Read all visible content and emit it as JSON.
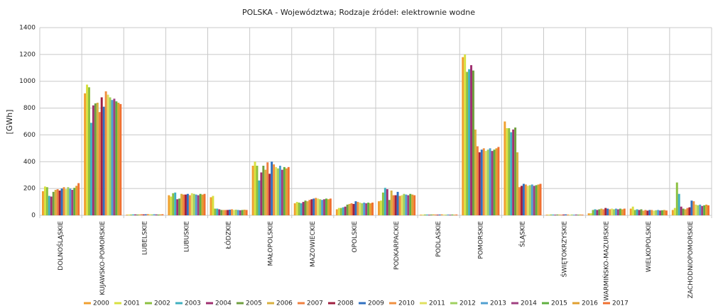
{
  "chart_data": {
    "type": "bar",
    "title": "POLSKA - Województwa; Rodzaje źródeł: elektrownie wodne",
    "y_label": "[GWh]",
    "categories": [
      "DOLNOŚLĄSKIE",
      "KUJAWSKO-POMORSKIE",
      "LUBELSKIE",
      "LUBUSKIE",
      "ŁÓDZKIE",
      "MAŁOPOLSKIE",
      "MAZOWIECKIE",
      "OPOLSKIE",
      "PODKARPACKIE",
      "PODLASKIE",
      "POMORSKIE",
      "ŚLĄSKIE",
      "ŚWIĘTOKRZYSKIE",
      "WARMIŃSKO-MAZURSKIE",
      "WIELKOPOLSKIE",
      "ZACHODNIOPOMORSKIE"
    ],
    "series": [
      {
        "name": "2000",
        "color": "#f0a030",
        "values": [
          180,
          910,
          5,
          150,
          135,
          370,
          90,
          45,
          105,
          5,
          1180,
          700,
          5,
          15,
          50,
          40
        ]
      },
      {
        "name": "2001",
        "color": "#d8e040",
        "values": [
          215,
          975,
          6,
          140,
          145,
          400,
          100,
          55,
          110,
          5,
          1200,
          650,
          5,
          15,
          65,
          55
        ]
      },
      {
        "name": "2002",
        "color": "#8cc040",
        "values": [
          210,
          955,
          6,
          165,
          50,
          370,
          95,
          55,
          170,
          6,
          1070,
          650,
          6,
          40,
          40,
          245
        ]
      },
      {
        "name": "2003",
        "color": "#40b0c0",
        "values": [
          145,
          690,
          7,
          170,
          50,
          260,
          90,
          60,
          205,
          6,
          1090,
          620,
          6,
          45,
          45,
          160
        ]
      },
      {
        "name": "2004",
        "color": "#a03070",
        "values": [
          140,
          820,
          7,
          120,
          45,
          320,
          100,
          65,
          195,
          5,
          1120,
          640,
          5,
          40,
          40,
          65
        ]
      },
      {
        "name": "2005",
        "color": "#70a040",
        "values": [
          175,
          835,
          6,
          125,
          40,
          370,
          110,
          80,
          115,
          6,
          1080,
          655,
          6,
          45,
          45,
          50
        ]
      },
      {
        "name": "2006",
        "color": "#d8b040",
        "values": [
          190,
          840,
          7,
          160,
          40,
          340,
          105,
          85,
          185,
          7,
          640,
          470,
          6,
          50,
          35,
          45
        ]
      },
      {
        "name": "2007",
        "color": "#f08040",
        "values": [
          195,
          770,
          8,
          155,
          40,
          395,
          115,
          90,
          150,
          6,
          515,
          210,
          5,
          45,
          40,
          55
        ]
      },
      {
        "name": "2008",
        "color": "#a02040",
        "values": [
          185,
          880,
          7,
          155,
          40,
          310,
          120,
          85,
          150,
          5,
          470,
          220,
          6,
          55,
          35,
          60
        ]
      },
      {
        "name": "2009",
        "color": "#3070c0",
        "values": [
          200,
          810,
          8,
          160,
          42,
          400,
          125,
          105,
          175,
          6,
          490,
          235,
          7,
          50,
          40,
          110
        ]
      },
      {
        "name": "2010",
        "color": "#f09040",
        "values": [
          210,
          925,
          9,
          150,
          45,
          380,
          130,
          100,
          145,
          7,
          500,
          230,
          6,
          45,
          40,
          105
        ]
      },
      {
        "name": "2011",
        "color": "#e0e060",
        "values": [
          195,
          900,
          8,
          165,
          40,
          360,
          125,
          95,
          150,
          6,
          480,
          220,
          5,
          50,
          35,
          80
        ]
      },
      {
        "name": "2012",
        "color": "#a0d060",
        "values": [
          210,
          880,
          7,
          160,
          42,
          350,
          120,
          90,
          160,
          5,
          490,
          225,
          6,
          45,
          38,
          75
        ]
      },
      {
        "name": "2013",
        "color": "#50a0d0",
        "values": [
          200,
          860,
          8,
          155,
          40,
          370,
          115,
          95,
          155,
          6,
          500,
          230,
          5,
          50,
          40,
          80
        ]
      },
      {
        "name": "2014",
        "color": "#a04080",
        "values": [
          190,
          870,
          7,
          150,
          38,
          340,
          120,
          90,
          150,
          5,
          480,
          220,
          6,
          45,
          36,
          70
        ]
      },
      {
        "name": "2015",
        "color": "#60b040",
        "values": [
          205,
          850,
          6,
          160,
          40,
          360,
          125,
          95,
          160,
          6,
          490,
          225,
          5,
          50,
          38,
          75
        ]
      },
      {
        "name": "2016",
        "color": "#e0a030",
        "values": [
          220,
          840,
          7,
          155,
          42,
          350,
          120,
          90,
          155,
          5,
          500,
          230,
          6,
          45,
          40,
          80
        ]
      },
      {
        "name": "2017",
        "color": "#f07030",
        "values": [
          240,
          830,
          8,
          160,
          40,
          360,
          125,
          95,
          150,
          6,
          510,
          235,
          5,
          50,
          36,
          75
        ]
      }
    ],
    "ylim": [
      0,
      1400
    ],
    "yticks": [
      0,
      200,
      400,
      600,
      800,
      1000,
      1200,
      1400
    ],
    "grid": true,
    "legend": "bottom"
  }
}
